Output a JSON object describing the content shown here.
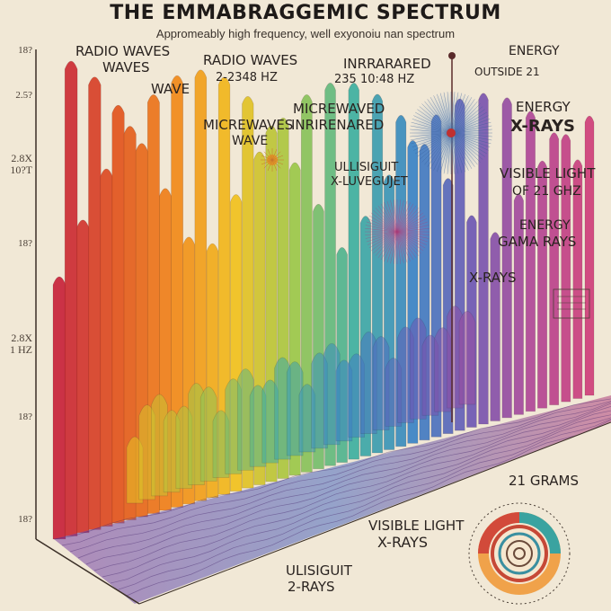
{
  "title": "THE EMMABRAGGEMIC SPECTRUM",
  "subtitle": "Appromeably high frequency, well exyonoiu nan spectrum",
  "labels": {
    "radio_waves_1a": "RADIO WAVES",
    "radio_waves_1b": "WAVES",
    "wave_1": "WAVE",
    "radio_waves_2": "RADIO WAVES",
    "freq_1": "2-2348 HZ",
    "inrrarared": "INRRARARED",
    "freq_2": "235 10:48 HZ",
    "energy_1": "ENERGY",
    "outside": "OUTSIDE 21",
    "microwaves": "MICREWAVES",
    "wave_2": "WAVE",
    "micrewaved": "MICREWAVED",
    "inrirenared": "INRIRENARED",
    "energy_2": "ENERGY",
    "xrays_1": "X-RAYS",
    "ulisiguit_1": "ULLISIGUIT",
    "x_luvegujet": "X-LUVEGUJET",
    "visible_light_1": "VISIBLE LIGHT",
    "of_21_ghz": "OF 21 GHZ",
    "energy_3": "ENERGY",
    "gama_rays": "GAMA RAYS",
    "xrays_2": "X-RAYS",
    "grams": "21 GRAMS",
    "visible_light_2": "VISIBLE LIGHT",
    "xrays_3": "X-RAYS",
    "ulisiguit_2": "ULISIGUIT",
    "two_rays": "2-RAYS"
  },
  "axis_ticks": [
    "18?",
    "2.5?",
    "2.8X 10?T",
    "18?",
    "2.8X 1 HZ",
    "18?",
    "18?"
  ],
  "colors": {
    "background": "#f1e8d6",
    "ink": "#2a2320",
    "spectrum": [
      "#c8233a",
      "#e2551e",
      "#f28a1a",
      "#f2c21e",
      "#9cc84a",
      "#3fb0a0",
      "#3a84c6",
      "#6e58b4",
      "#b04898",
      "#cf3f7a"
    ]
  }
}
